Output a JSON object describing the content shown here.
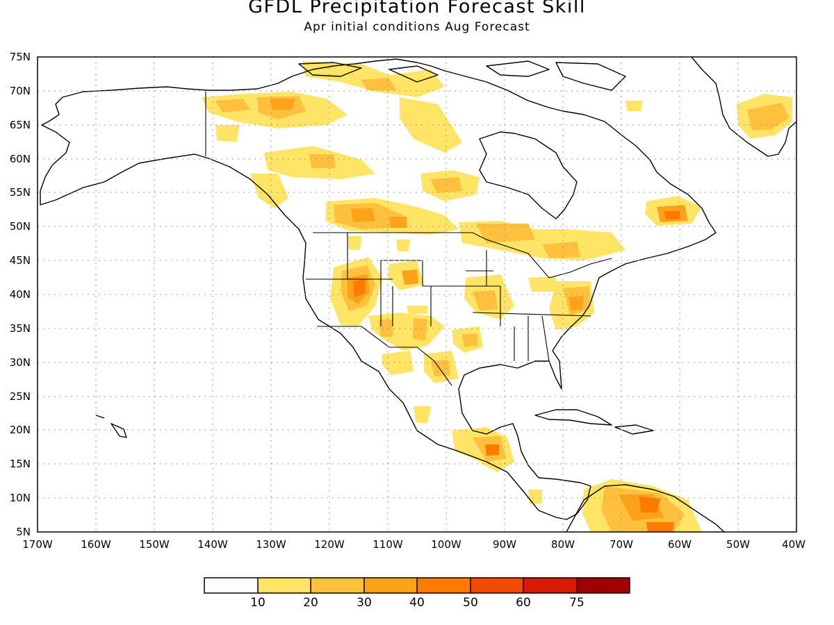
{
  "title": "GFDL Precipitation Forecast Skill",
  "subtitle": "Apr initial conditions  Aug Forecast",
  "axes": {
    "lat_labels": [
      "5N",
      "10N",
      "15N",
      "20N",
      "25N",
      "30N",
      "35N",
      "40N",
      "45N",
      "50N",
      "55N",
      "60N",
      "65N",
      "70N",
      "75N"
    ],
    "lon_labels": [
      "170W",
      "160W",
      "150W",
      "140W",
      "130W",
      "120W",
      "110W",
      "100W",
      "90W",
      "80W",
      "70W",
      "60W",
      "50W",
      "40W"
    ],
    "lat_range": [
      5,
      75
    ],
    "lon_range": [
      -170,
      -40
    ],
    "grid": "dotted"
  },
  "legend": {
    "labels": [
      "10",
      "20",
      "30",
      "40",
      "50",
      "60",
      "75"
    ],
    "colors": [
      "#ffffff",
      "#ffe466",
      "#ffc13d",
      "#ffa21a",
      "#ff7a00",
      "#f24a00",
      "#d91a00",
      "#a00000"
    ]
  },
  "colors": {
    "land_outline": "#000000",
    "background": "#ffffff"
  }
}
